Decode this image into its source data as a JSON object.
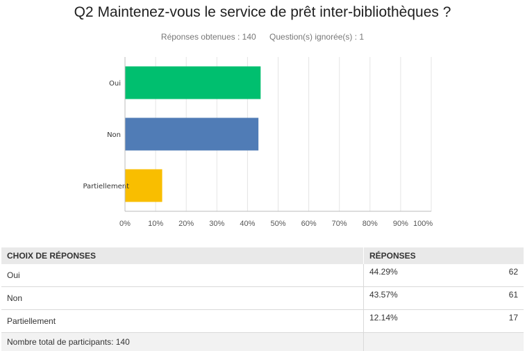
{
  "question_title": "Q2 Maintenez-vous le service de prêt inter-bibliothèques ?",
  "stats": {
    "answered": "Réponses obtenues : 140",
    "skipped": "Question(s) ignorée(s) : 1"
  },
  "chart_data": {
    "type": "bar",
    "orientation": "horizontal",
    "categories": [
      "Oui",
      "Non",
      "Partiellement"
    ],
    "values": [
      44.29,
      43.57,
      12.14
    ],
    "colors": [
      "#00bf6f",
      "#507cb6",
      "#f9be00"
    ],
    "x_ticks": [
      "0%",
      "10%",
      "20%",
      "30%",
      "40%",
      "50%",
      "60%",
      "70%",
      "80%",
      "90%",
      "100%"
    ],
    "xlim": [
      0,
      100
    ],
    "grid": true
  },
  "table": {
    "headers": [
      "CHOIX DE RÉPONSES",
      "RÉPONSES"
    ],
    "rows": [
      {
        "choice": "Oui",
        "percent": "44.29%",
        "count": "62"
      },
      {
        "choice": "Non",
        "percent": "43.57%",
        "count": "61"
      },
      {
        "choice": "Partiellement",
        "percent": "12.14%",
        "count": "17"
      }
    ],
    "footer": "Nombre total de participants: 140"
  }
}
